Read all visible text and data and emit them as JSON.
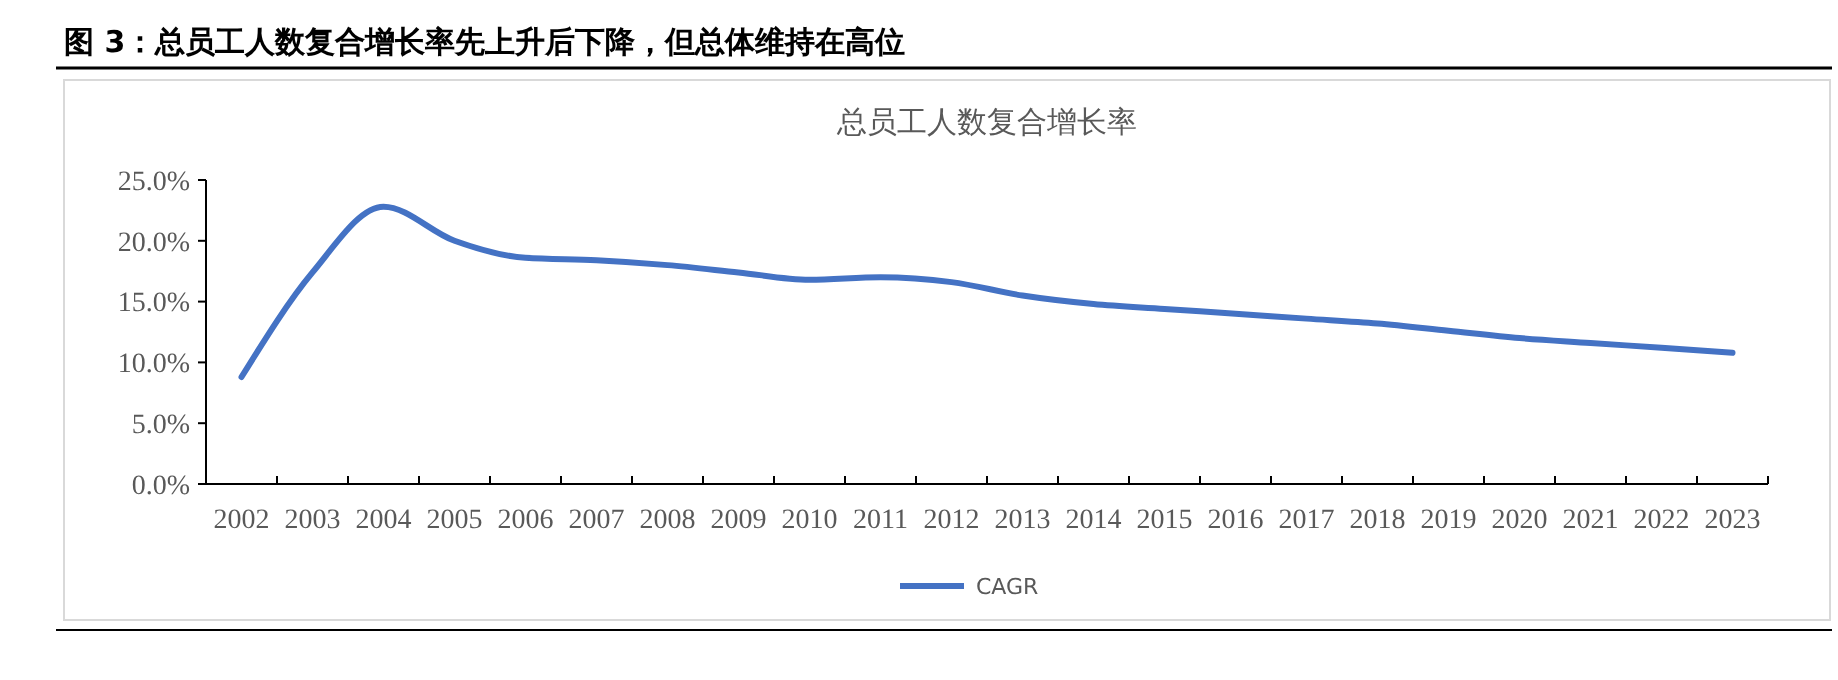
{
  "chart_data": {
    "type": "line",
    "title": "图 3：总员工人数复合增长率先上升后下降，但总体维持在高位",
    "subtitle": "总员工人数复合增长率",
    "categories": [
      "2002",
      "2003",
      "2004",
      "2005",
      "2006",
      "2007",
      "2008",
      "2009",
      "2010",
      "2011",
      "2012",
      "2013",
      "2014",
      "2015",
      "2016",
      "2017",
      "2018",
      "2019",
      "2020",
      "2021",
      "2022",
      "2023"
    ],
    "series": [
      {
        "name": "CAGR",
        "color": "#4472c4",
        "values": [
          8.8,
          17.4,
          22.8,
          20.0,
          18.6,
          18.4,
          18.0,
          17.4,
          16.8,
          17.0,
          16.6,
          15.5,
          14.8,
          14.4,
          14.0,
          13.6,
          13.2,
          12.6,
          12.0,
          11.6,
          11.2,
          10.8
        ]
      }
    ],
    "ylim": [
      0,
      25
    ],
    "yticks": [
      {
        "value": 0,
        "label": "0.0%"
      },
      {
        "value": 5,
        "label": "5.0%"
      },
      {
        "value": 10,
        "label": "10.0%"
      },
      {
        "value": 15,
        "label": "15.0%"
      },
      {
        "value": 20,
        "label": "20.0%"
      },
      {
        "value": 25,
        "label": "25.0%"
      }
    ],
    "grid": false,
    "legend": "bottom",
    "marker": "none",
    "line_style": "solid"
  }
}
